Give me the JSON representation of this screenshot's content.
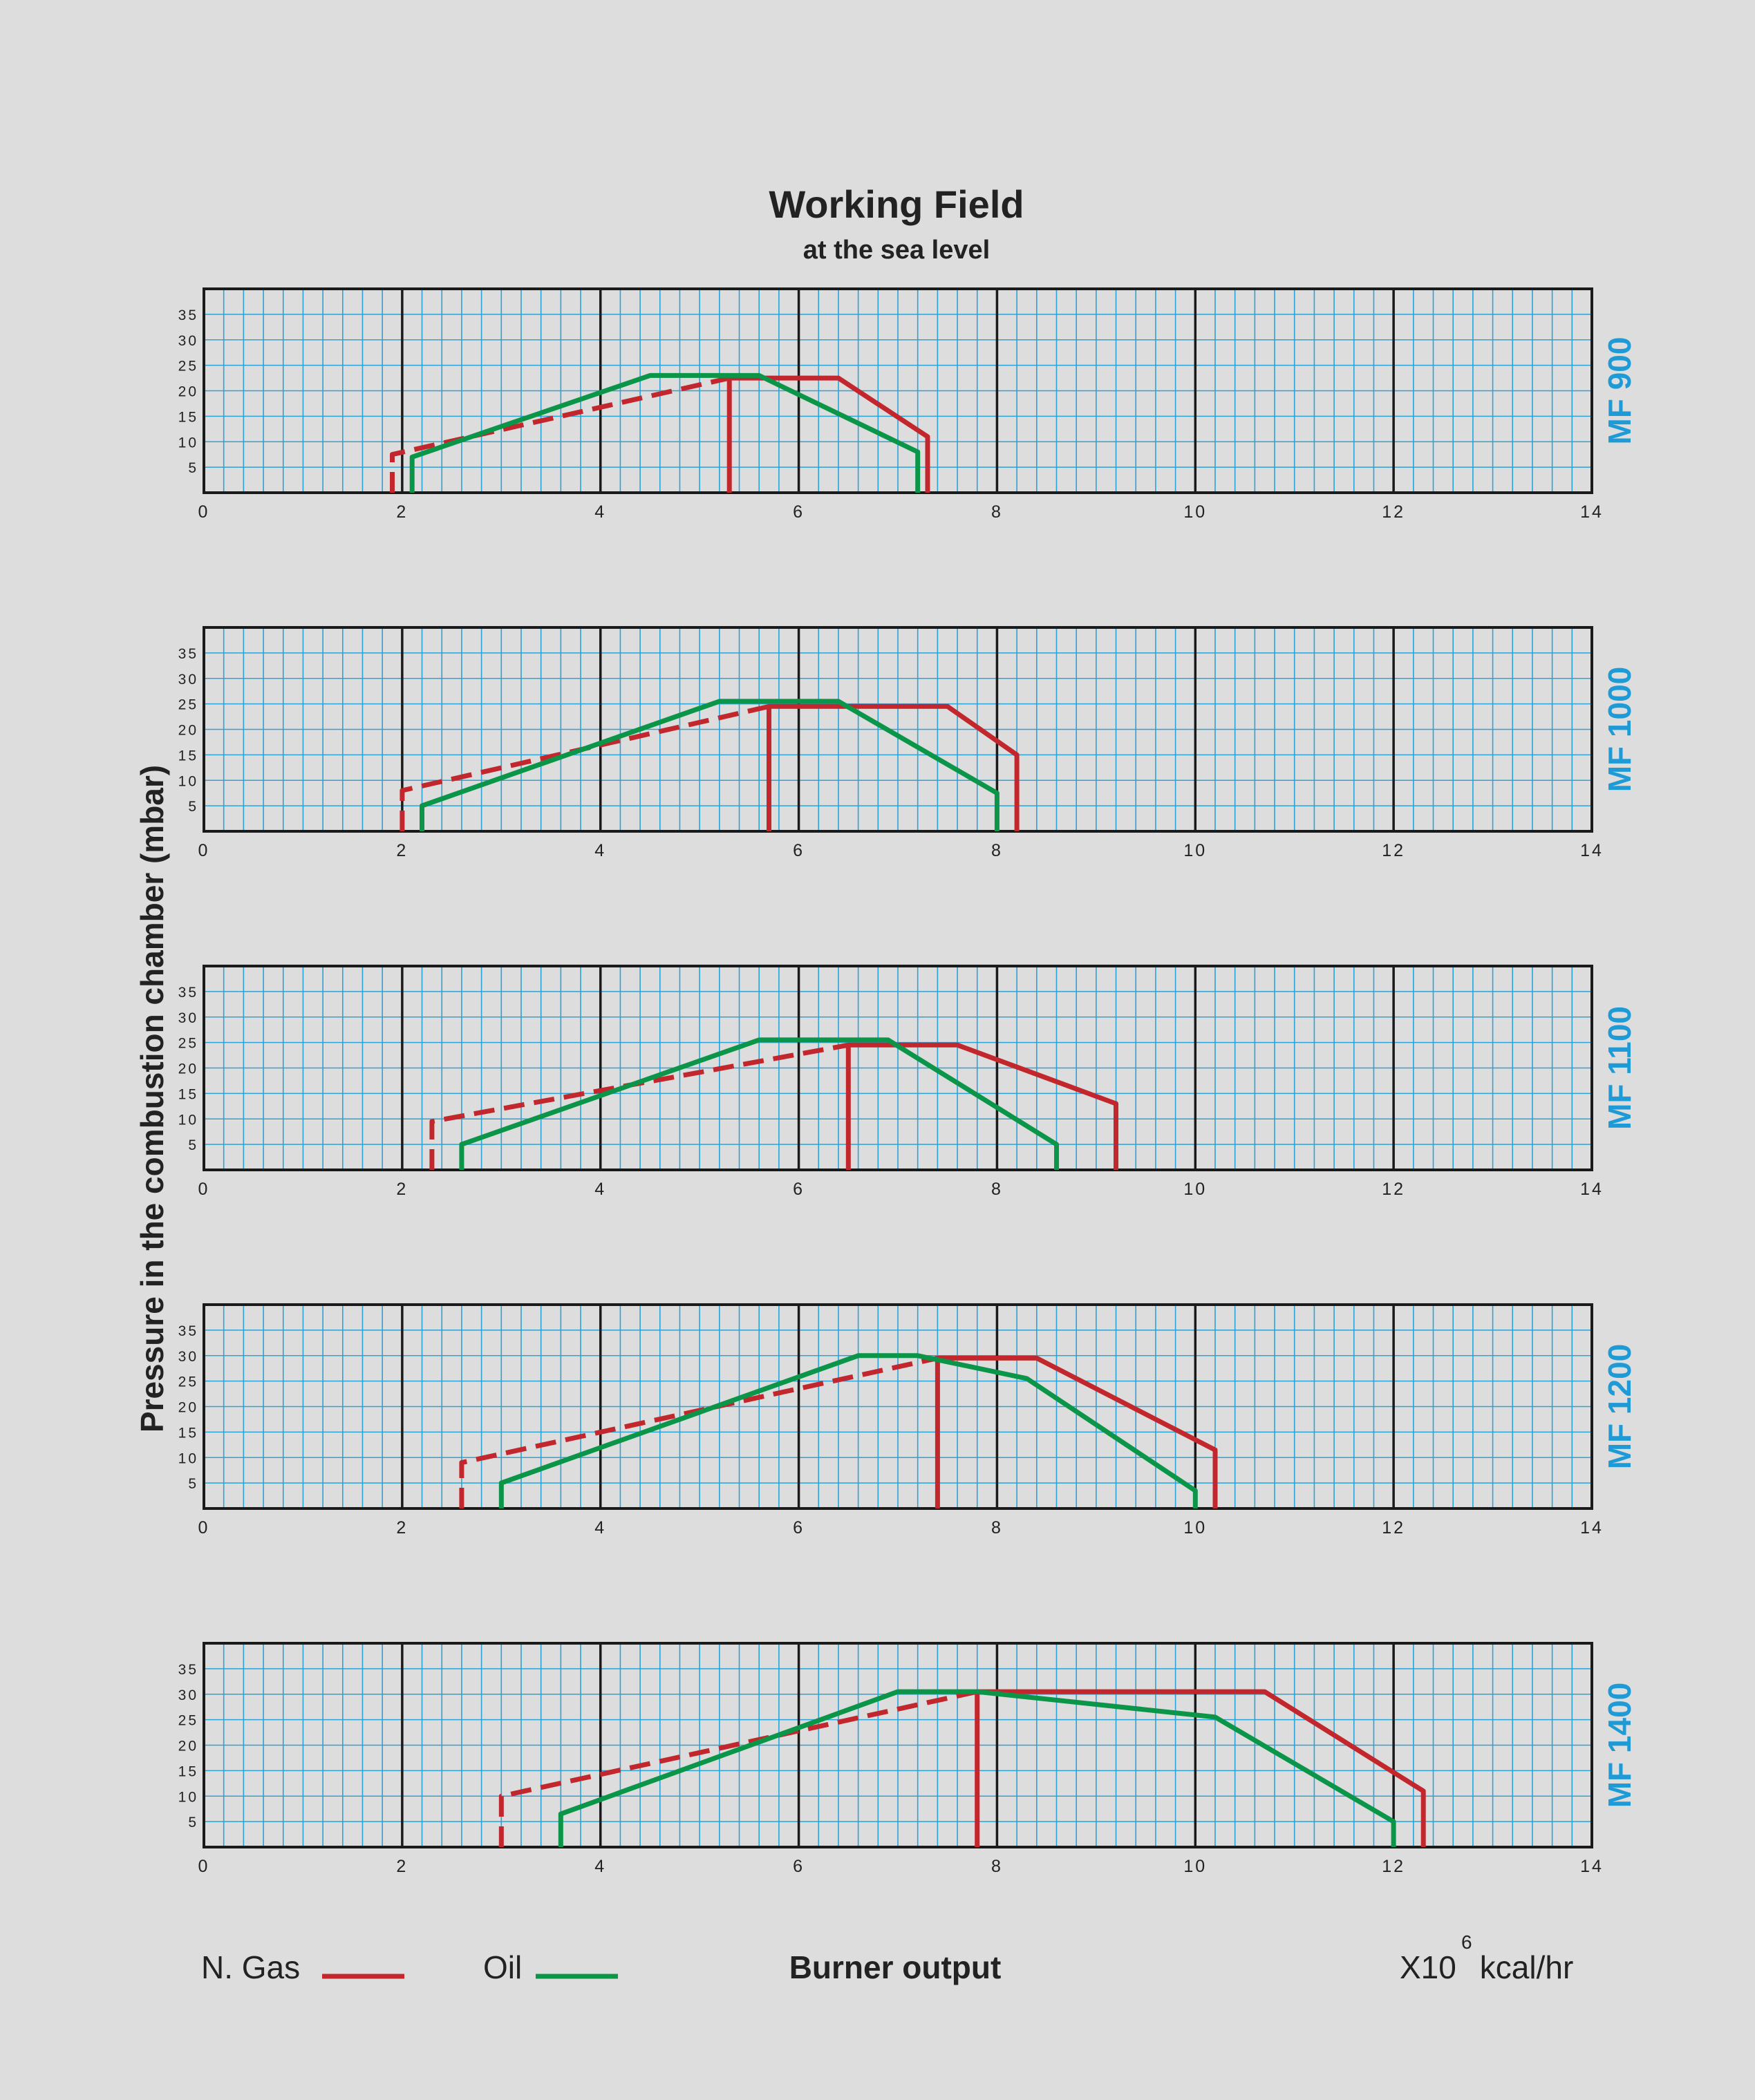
{
  "title": "Working Field",
  "subtitle": "at the sea level",
  "ylabel": "Pressure in the combustion chamber (mbar)",
  "xlabel": "Burner output",
  "unit_prefix": "X10",
  "unit_exponent": "6",
  "unit_suffix": " kcal/hr",
  "legend": [
    {
      "label": "N. Gas",
      "color": "#c1272d"
    },
    {
      "label": "Oil",
      "color": "#0a9548"
    }
  ],
  "colors": {
    "gas": "#c1272d",
    "oil": "#0a9548",
    "grid": "#2aa3d8",
    "model": "#1e9bd7",
    "background": "#dddddd"
  },
  "chart_data": [
    {
      "type": "line",
      "model": "MF 900",
      "xlim": [
        0,
        14
      ],
      "ylim": [
        0,
        40
      ],
      "x_ticks": [
        "0",
        "2",
        "4",
        "6",
        "8",
        "10",
        "12",
        "14"
      ],
      "y_ticks": [
        "5",
        "10",
        "15",
        "20",
        "25",
        "30",
        "35"
      ],
      "series": [
        {
          "name": "N. Gas",
          "style": "solid",
          "points": [
            [
              5.3,
              0
            ],
            [
              5.3,
              22.5
            ],
            [
              6.4,
              22.5
            ],
            [
              7.3,
              11
            ],
            [
              7.3,
              0
            ]
          ]
        },
        {
          "name": "N. Gas",
          "style": "dashed",
          "points": [
            [
              1.9,
              0
            ],
            [
              1.9,
              7.5
            ],
            [
              5.3,
              22.5
            ]
          ]
        },
        {
          "name": "Oil",
          "style": "solid",
          "points": [
            [
              2.1,
              0
            ],
            [
              2.1,
              7
            ],
            [
              4.5,
              23
            ],
            [
              5.6,
              23
            ],
            [
              7.2,
              8
            ],
            [
              7.2,
              0
            ]
          ]
        }
      ]
    },
    {
      "type": "line",
      "model": "MF 1000",
      "xlim": [
        0,
        14
      ],
      "ylim": [
        0,
        40
      ],
      "x_ticks": [
        "0",
        "2",
        "4",
        "6",
        "8",
        "10",
        "12",
        "14"
      ],
      "y_ticks": [
        "5",
        "10",
        "15",
        "20",
        "25",
        "30",
        "35"
      ],
      "series": [
        {
          "name": "N. Gas",
          "style": "solid",
          "points": [
            [
              5.7,
              0
            ],
            [
              5.7,
              24.5
            ],
            [
              7.5,
              24.5
            ],
            [
              8.2,
              15
            ],
            [
              8.2,
              0
            ]
          ]
        },
        {
          "name": "N. Gas",
          "style": "dashed",
          "points": [
            [
              2,
              0
            ],
            [
              2,
              8
            ],
            [
              5.7,
              24.5
            ]
          ]
        },
        {
          "name": "Oil",
          "style": "solid",
          "points": [
            [
              2.2,
              0
            ],
            [
              2.2,
              5
            ],
            [
              5.2,
              25.5
            ],
            [
              6.4,
              25.5
            ],
            [
              8,
              7.5
            ],
            [
              8,
              0
            ]
          ]
        }
      ]
    },
    {
      "type": "line",
      "model": "MF 1100",
      "xlim": [
        0,
        14
      ],
      "ylim": [
        0,
        40
      ],
      "x_ticks": [
        "0",
        "2",
        "4",
        "6",
        "8",
        "10",
        "12",
        "14"
      ],
      "y_ticks": [
        "5",
        "10",
        "15",
        "20",
        "25",
        "30",
        "35"
      ],
      "series": [
        {
          "name": "N. Gas",
          "style": "solid",
          "points": [
            [
              6.5,
              0
            ],
            [
              6.5,
              24.5
            ],
            [
              7.6,
              24.5
            ],
            [
              9.2,
              13
            ],
            [
              9.2,
              0
            ]
          ]
        },
        {
          "name": "N. Gas",
          "style": "dashed",
          "points": [
            [
              2.3,
              0
            ],
            [
              2.3,
              9.5
            ],
            [
              6.5,
              24.5
            ]
          ]
        },
        {
          "name": "Oil",
          "style": "solid",
          "points": [
            [
              2.6,
              0
            ],
            [
              2.6,
              5
            ],
            [
              5.6,
              25.5
            ],
            [
              6.9,
              25.5
            ],
            [
              8.6,
              5
            ],
            [
              8.6,
              0
            ]
          ]
        }
      ]
    },
    {
      "type": "line",
      "model": "MF 1200",
      "xlim": [
        0,
        14
      ],
      "ylim": [
        0,
        40
      ],
      "x_ticks": [
        "0",
        "2",
        "4",
        "6",
        "8",
        "10",
        "12",
        "14"
      ],
      "y_ticks": [
        "5",
        "10",
        "15",
        "20",
        "25",
        "30",
        "35"
      ],
      "series": [
        {
          "name": "N. Gas",
          "style": "solid",
          "points": [
            [
              7.4,
              0
            ],
            [
              7.4,
              29.5
            ],
            [
              8.4,
              29.5
            ],
            [
              10.2,
              11.5
            ],
            [
              10.2,
              0
            ]
          ]
        },
        {
          "name": "N. Gas",
          "style": "dashed",
          "points": [
            [
              2.6,
              0
            ],
            [
              2.6,
              9
            ],
            [
              7.4,
              29.5
            ]
          ]
        },
        {
          "name": "Oil",
          "style": "solid",
          "points": [
            [
              3,
              0
            ],
            [
              3,
              5
            ],
            [
              6.6,
              30
            ],
            [
              7.2,
              30
            ],
            [
              8.3,
              25.5
            ],
            [
              10,
              3.5
            ],
            [
              10,
              0
            ]
          ]
        }
      ]
    },
    {
      "type": "line",
      "model": "MF 1400",
      "xlim": [
        0,
        14
      ],
      "ylim": [
        0,
        40
      ],
      "x_ticks": [
        "0",
        "2",
        "4",
        "6",
        "8",
        "10",
        "12",
        "14"
      ],
      "y_ticks": [
        "5",
        "10",
        "15",
        "20",
        "25",
        "30",
        "35"
      ],
      "series": [
        {
          "name": "N. Gas",
          "style": "solid",
          "points": [
            [
              7.8,
              0
            ],
            [
              7.8,
              30.5
            ],
            [
              10.7,
              30.5
            ],
            [
              12.3,
              11
            ],
            [
              12.3,
              0
            ]
          ]
        },
        {
          "name": "N. Gas",
          "style": "dashed",
          "points": [
            [
              3,
              0
            ],
            [
              3,
              10
            ],
            [
              7.8,
              30.5
            ]
          ]
        },
        {
          "name": "Oil",
          "style": "solid",
          "points": [
            [
              3.6,
              0
            ],
            [
              3.6,
              6.5
            ],
            [
              7,
              30.5
            ],
            [
              7.8,
              30.5
            ],
            [
              10.2,
              25.5
            ],
            [
              12,
              5
            ],
            [
              12,
              0
            ]
          ]
        }
      ]
    }
  ]
}
